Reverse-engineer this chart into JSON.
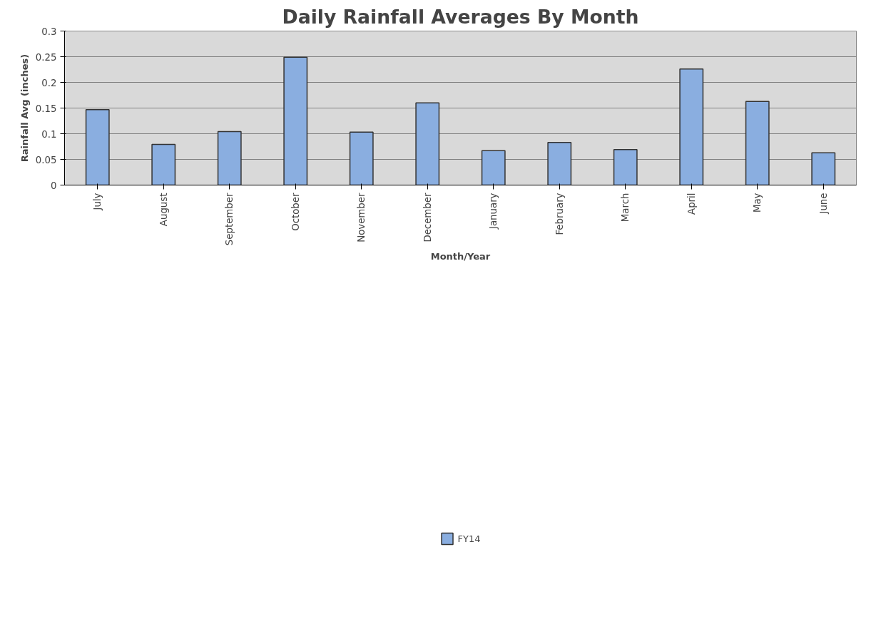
{
  "chart_data": {
    "type": "bar",
    "title": "Daily Rainfall Averages By Month",
    "xlabel": "Month/Year",
    "ylabel": "Rainfall Avg (inches)",
    "categories": [
      "July",
      "August",
      "September",
      "October",
      "November",
      "December",
      "January",
      "February",
      "March",
      "April",
      "May",
      "June"
    ],
    "series": [
      {
        "name": "FY14",
        "color": "#8aaee0",
        "values": [
          0.147,
          0.079,
          0.104,
          0.249,
          0.103,
          0.16,
          0.067,
          0.083,
          0.069,
          0.226,
          0.163,
          0.063
        ]
      }
    ],
    "ylim": [
      0,
      0.3
    ],
    "yticks": [
      0,
      0.05,
      0.1,
      0.15,
      0.2,
      0.25,
      0.3
    ],
    "grid": "y",
    "legend": "bottom"
  }
}
